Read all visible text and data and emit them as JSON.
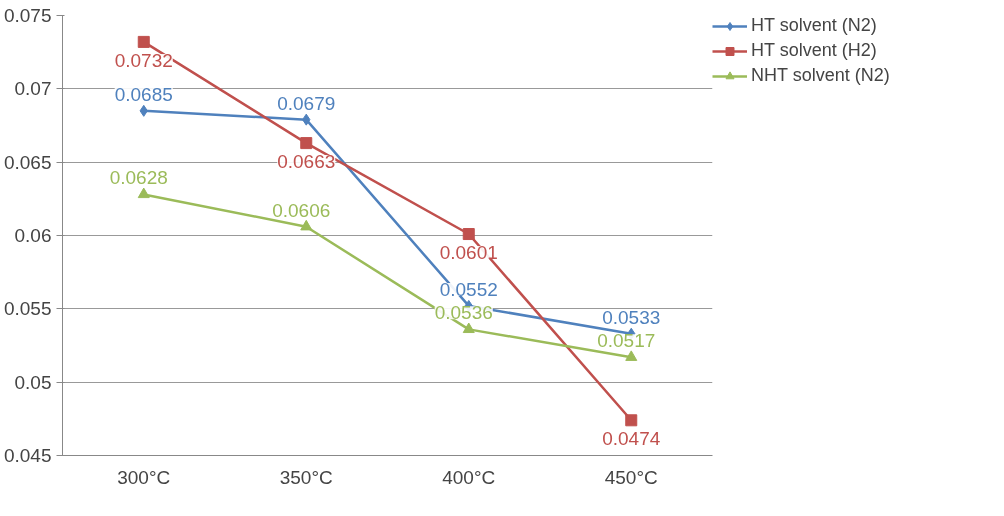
{
  "chart_data": {
    "type": "line",
    "categories": [
      "300°C",
      "350°C",
      "400°C",
      "450°C"
    ],
    "series": [
      {
        "name": "HT solvent (N2)",
        "color": "#4f81bd",
        "marker": "diamond",
        "values": [
          0.0685,
          0.0679,
          0.0552,
          0.0533
        ]
      },
      {
        "name": "HT solvent (H2)",
        "color": "#c0504d",
        "marker": "square",
        "values": [
          0.0732,
          0.0663,
          0.0601,
          0.0474
        ]
      },
      {
        "name": "NHT solvent (N2)",
        "color": "#9bbb59",
        "marker": "triangle",
        "values": [
          0.0628,
          0.0606,
          0.0536,
          0.0517
        ]
      }
    ],
    "ylim": [
      0.045,
      0.075
    ],
    "yticks": [
      0.045,
      0.05,
      0.055,
      0.06,
      0.065,
      0.07,
      0.075
    ],
    "grid": "y",
    "legend": "right",
    "data_labels": true
  }
}
